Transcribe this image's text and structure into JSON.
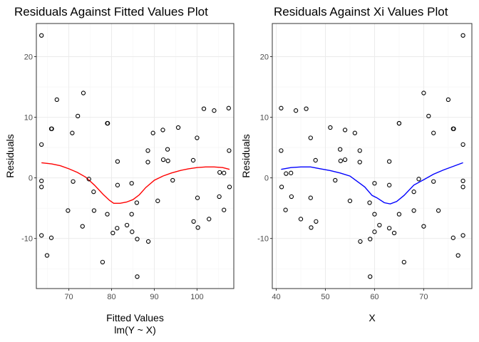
{
  "chart_data": [
    {
      "type": "scatter",
      "title": "Residuals Against Fitted Values Plot",
      "xlabel": "Fitted Values",
      "xlabel_line2": "lm(Y ~ X)",
      "ylabel": "Residuals",
      "xlim": [
        62.4,
        108.6
      ],
      "ylim": [
        -16.3,
        23.5
      ],
      "xticks": [
        70,
        80,
        90,
        100
      ],
      "yticks": [
        -10,
        0,
        10,
        20
      ],
      "x_tick_labels": [
        "70",
        "80",
        "90",
        "100"
      ],
      "y_tick_labels": [
        "-10",
        "0",
        "10",
        "20"
      ],
      "grid": true,
      "smooth_color": "#ff0000",
      "points": [
        [
          63.6,
          23.5
        ],
        [
          63.6,
          5.5
        ],
        [
          63.6,
          -0.5
        ],
        [
          63.6,
          -1.5
        ],
        [
          63.6,
          -9.5
        ],
        [
          64.9,
          -12.8
        ],
        [
          65.9,
          8.1
        ],
        [
          66.0,
          8.1
        ],
        [
          65.9,
          -9.9
        ],
        [
          67.2,
          12.9
        ],
        [
          69.8,
          -5.4
        ],
        [
          70.8,
          7.4
        ],
        [
          71.0,
          -0.6
        ],
        [
          72.1,
          10.2
        ],
        [
          73.4,
          14.0
        ],
        [
          73.2,
          -8.0
        ],
        [
          74.7,
          -0.2
        ],
        [
          75.8,
          -2.3
        ],
        [
          75.9,
          -5.4
        ],
        [
          77.9,
          -13.9
        ],
        [
          79.0,
          9.0
        ],
        [
          79.1,
          9.0
        ],
        [
          79.0,
          -6.0
        ],
        [
          80.3,
          -9.1
        ],
        [
          81.3,
          -8.3
        ],
        [
          81.4,
          2.7
        ],
        [
          81.4,
          -1.2
        ],
        [
          83.6,
          -7.8
        ],
        [
          84.7,
          -0.9
        ],
        [
          84.8,
          -8.9
        ],
        [
          84.7,
          -6.0
        ],
        [
          85.9,
          -4.1
        ],
        [
          86.0,
          -10.1
        ],
        [
          86.0,
          -16.3
        ],
        [
          88.5,
          4.5
        ],
        [
          88.5,
          2.6
        ],
        [
          88.6,
          -10.5
        ],
        [
          89.7,
          7.4
        ],
        [
          90.8,
          -3.8
        ],
        [
          92.0,
          7.9
        ],
        [
          92.1,
          3.0
        ],
        [
          93.1,
          4.7
        ],
        [
          93.2,
          2.8
        ],
        [
          94.3,
          -0.4
        ],
        [
          95.6,
          8.3
        ],
        [
          99.1,
          2.9
        ],
        [
          99.2,
          -7.2
        ],
        [
          100.0,
          6.6
        ],
        [
          100.1,
          -3.3
        ],
        [
          100.2,
          -8.2
        ],
        [
          101.6,
          11.4
        ],
        [
          102.8,
          -6.8
        ],
        [
          104.0,
          11.1
        ],
        [
          105.3,
          0.9
        ],
        [
          105.2,
          -3.1
        ],
        [
          106.3,
          0.8
        ],
        [
          106.3,
          -5.3
        ],
        [
          107.4,
          11.5
        ],
        [
          107.5,
          4.5
        ],
        [
          107.6,
          -1.5
        ]
      ],
      "smooth": [
        [
          63.6,
          2.5
        ],
        [
          66,
          2.3
        ],
        [
          68,
          2.0
        ],
        [
          70,
          1.5
        ],
        [
          72,
          0.9
        ],
        [
          74,
          0.1
        ],
        [
          76,
          -1.2
        ],
        [
          78,
          -2.7
        ],
        [
          79.5,
          -3.7
        ],
        [
          80.5,
          -4.2
        ],
        [
          82,
          -4.2
        ],
        [
          83.5,
          -4.0
        ],
        [
          85,
          -3.6
        ],
        [
          86.5,
          -2.8
        ],
        [
          88,
          -1.6
        ],
        [
          90,
          -0.4
        ],
        [
          92,
          0.3
        ],
        [
          94,
          0.8
        ],
        [
          96,
          1.2
        ],
        [
          98,
          1.5
        ],
        [
          100,
          1.7
        ],
        [
          102,
          1.8
        ],
        [
          104,
          1.8
        ],
        [
          106,
          1.7
        ],
        [
          107.6,
          1.4
        ]
      ]
    },
    {
      "type": "scatter",
      "title": "Residuals Against Xi Values Plot",
      "xlabel": "X",
      "ylabel": "Residuals",
      "xlim": [
        39.2,
        79.8
      ],
      "ylim": [
        -16.3,
        23.5
      ],
      "xticks": [
        40,
        50,
        60,
        70
      ],
      "yticks": [
        -10,
        0,
        10,
        20
      ],
      "x_tick_labels": [
        "40",
        "50",
        "60",
        "70"
      ],
      "y_tick_labels": [
        "-10",
        "0",
        "10",
        "20"
      ],
      "grid": true,
      "smooth_color": "#0000ff",
      "points": [
        [
          41.0,
          11.5
        ],
        [
          41.0,
          4.5
        ],
        [
          41.1,
          -1.5
        ],
        [
          41.9,
          -5.3
        ],
        [
          42.0,
          0.7
        ],
        [
          43.0,
          0.8
        ],
        [
          43.1,
          -3.1
        ],
        [
          44.0,
          11.1
        ],
        [
          45.0,
          -6.8
        ],
        [
          46.1,
          11.4
        ],
        [
          47.0,
          6.6
        ],
        [
          47.0,
          -3.3
        ],
        [
          47.1,
          -8.2
        ],
        [
          48.0,
          2.9
        ],
        [
          48.1,
          -7.2
        ],
        [
          51.0,
          8.3
        ],
        [
          52.0,
          -0.4
        ],
        [
          53.0,
          4.7
        ],
        [
          53.1,
          2.8
        ],
        [
          54.0,
          7.9
        ],
        [
          54.0,
          3.0
        ],
        [
          55.0,
          -3.8
        ],
        [
          56.0,
          7.4
        ],
        [
          57.0,
          4.5
        ],
        [
          57.0,
          2.6
        ],
        [
          57.1,
          -10.5
        ],
        [
          59.0,
          -4.1
        ],
        [
          59.1,
          -10.1
        ],
        [
          59.1,
          -16.3
        ],
        [
          60.0,
          -0.9
        ],
        [
          60.0,
          -6.0
        ],
        [
          60.0,
          -8.9
        ],
        [
          61.0,
          -7.8
        ],
        [
          63.0,
          2.7
        ],
        [
          63.0,
          -1.2
        ],
        [
          63.0,
          -8.3
        ],
        [
          64.0,
          -9.1
        ],
        [
          65.0,
          9.0
        ],
        [
          65.0,
          9.0
        ],
        [
          65.0,
          -6.0
        ],
        [
          66.0,
          -13.9
        ],
        [
          68.0,
          -2.3
        ],
        [
          68.0,
          -5.4
        ],
        [
          69.0,
          -0.2
        ],
        [
          70.0,
          14.0
        ],
        [
          70.0,
          -8.0
        ],
        [
          71.0,
          10.2
        ],
        [
          72.0,
          7.4
        ],
        [
          72.0,
          -0.6
        ],
        [
          73.0,
          -5.4
        ],
        [
          75.0,
          12.9
        ],
        [
          76.0,
          8.1
        ],
        [
          76.1,
          8.1
        ],
        [
          76.0,
          -9.9
        ],
        [
          77.0,
          -12.8
        ],
        [
          78.0,
          23.5
        ],
        [
          78.0,
          5.5
        ],
        [
          78.0,
          -0.5
        ],
        [
          78.0,
          -1.5
        ],
        [
          78.0,
          -9.5
        ]
      ],
      "smooth": [
        [
          41.0,
          1.4
        ],
        [
          43,
          1.7
        ],
        [
          45,
          1.8
        ],
        [
          47,
          1.8
        ],
        [
          49,
          1.5
        ],
        [
          51,
          1.2
        ],
        [
          53,
          0.8
        ],
        [
          55,
          0.3
        ],
        [
          56.5,
          -0.6
        ],
        [
          58,
          -1.5
        ],
        [
          59.5,
          -2.9
        ],
        [
          60.5,
          -3.3
        ],
        [
          62,
          -4.1
        ],
        [
          63.2,
          -4.3
        ],
        [
          64.5,
          -3.9
        ],
        [
          66,
          -2.9
        ],
        [
          68,
          -1.2
        ],
        [
          70,
          -0.3
        ],
        [
          72,
          0.6
        ],
        [
          74,
          1.3
        ],
        [
          76,
          1.9
        ],
        [
          78,
          2.5
        ]
      ]
    }
  ]
}
